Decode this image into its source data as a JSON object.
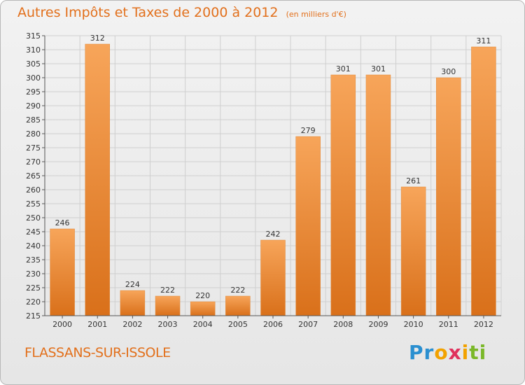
{
  "header": {
    "title": "Autres Impôts et Taxes de 2000 à 2012",
    "unit": "(en milliers d'€)"
  },
  "footer": {
    "commune": "FLASSANS-SUR-ISSOLE",
    "logo": [
      "Pr",
      "o",
      "x",
      "i",
      "ti"
    ]
  },
  "colors": {
    "accent": "#e2701c",
    "bar_top": "#f7a55a",
    "bar_bottom": "#d9701a"
  },
  "chart_data": {
    "type": "bar",
    "title": "Autres Impôts et Taxes de 2000 à 2012",
    "subtitle": "(en milliers d'€)",
    "categories": [
      "2000",
      "2001",
      "2002",
      "2003",
      "2004",
      "2005",
      "2006",
      "2007",
      "2008",
      "2009",
      "2010",
      "2011",
      "2012"
    ],
    "values": [
      246,
      312,
      224,
      222,
      220,
      222,
      242,
      279,
      301,
      301,
      261,
      300,
      311
    ],
    "ylim": [
      215,
      315
    ],
    "yticks": [
      215,
      220,
      225,
      230,
      235,
      240,
      245,
      250,
      255,
      260,
      265,
      270,
      275,
      280,
      285,
      290,
      295,
      300,
      305,
      310,
      315
    ],
    "grid": true,
    "xlabel": "",
    "ylabel": ""
  }
}
